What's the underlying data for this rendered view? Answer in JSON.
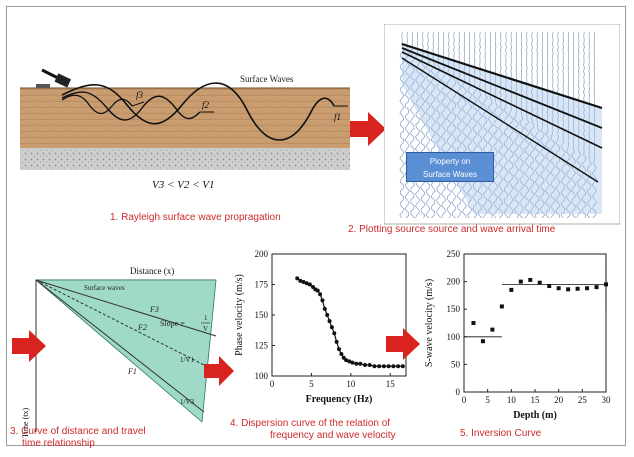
{
  "panel1": {
    "label": "Surface Waves",
    "wave_labels": [
      "f3",
      "f2",
      "f1"
    ],
    "inequality": "V3 < V2 < V1",
    "caption": "1. Rayleigh surface wave propragation"
  },
  "panel2": {
    "box_line1": "Ploperty on",
    "box_line2": "Surface Waves",
    "caption": "2. Plotting source source and wave arrival time"
  },
  "panel3": {
    "x_axis_label": "Distance (x)",
    "y_axis_label": "Time (tx)",
    "region_label": "Surface waves",
    "line_labels": [
      "F1",
      "F2",
      "F3"
    ],
    "slope_label": "Slope =",
    "slope_num": "1",
    "slope_den": "V",
    "frac_labels": [
      "1/V1",
      "1/V3"
    ],
    "caption_line1": "3. Curve of distance and travel",
    "caption_line2": "time relationship"
  },
  "panel4": {
    "caption_line1": "4. Dispersion curve of the relation of",
    "caption_line2": "frequency and wave velocity"
  },
  "panel5": {
    "caption": "5. Inversion Curve"
  },
  "colors": {
    "caption": "#cc2b2b",
    "arrow": "#d9231f",
    "teal": "#9fd9c8",
    "earth": "#c79a6b"
  },
  "chart_data": [
    {
      "type": "scatter",
      "xlabel": "Frequency (Hz)",
      "ylabel": "Phase velocity (m/s)",
      "xlim": [
        0,
        17
      ],
      "ylim": [
        100,
        200
      ],
      "xticks": [
        "0",
        "5",
        "10",
        "15"
      ],
      "yticks": [
        "100",
        "125",
        "150",
        "175",
        "200"
      ],
      "x": [
        3.2,
        3.6,
        4.0,
        4.4,
        4.8,
        5.2,
        5.5,
        5.8,
        6.1,
        6.4,
        6.7,
        7.0,
        7.3,
        7.6,
        7.9,
        8.2,
        8.5,
        8.8,
        9.1,
        9.4,
        9.8,
        10.2,
        10.7,
        11.2,
        11.8,
        12.4,
        13.0,
        13.6,
        14.2,
        14.8,
        15.4,
        16.0,
        16.6
      ],
      "y": [
        180,
        178,
        177,
        176,
        175,
        173,
        171,
        170,
        167,
        162,
        155,
        150,
        145,
        140,
        135,
        128,
        122,
        118,
        115,
        113,
        112,
        111,
        110,
        110,
        109,
        109,
        108,
        108,
        108,
        108,
        108,
        108,
        108
      ]
    },
    {
      "type": "scatter",
      "xlabel": "Depth (m)",
      "ylabel": "S-wave velocity (m/s)",
      "xlim": [
        0,
        30
      ],
      "ylim": [
        0,
        250
      ],
      "xticks": [
        "0",
        "5",
        "10",
        "15",
        "20",
        "25",
        "30"
      ],
      "yticks": [
        "0",
        "50",
        "100",
        "150",
        "200",
        "250"
      ],
      "x": [
        2,
        4,
        6,
        8,
        10,
        12,
        14,
        16,
        18,
        20,
        22,
        24,
        26,
        28,
        30
      ],
      "y": [
        125,
        92,
        113,
        155,
        185,
        200,
        203,
        198,
        192,
        188,
        186,
        187,
        188,
        190,
        195
      ]
    }
  ]
}
